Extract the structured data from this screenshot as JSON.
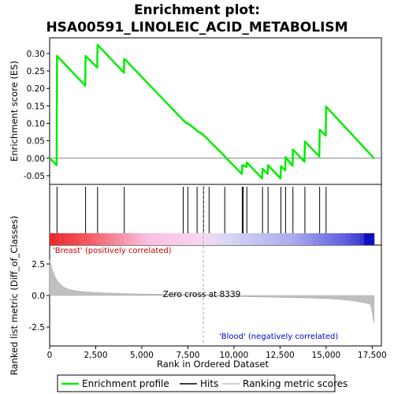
{
  "chart_data": {
    "type": "line",
    "title_line1": "Enrichment plot:",
    "title_line2": "HSA00591_LINOLEIC_ACID_METABOLISM",
    "es_ylabel": "Enrichment score (ES)",
    "metric_ylabel": "Ranked list metric (Diff_of_Classes)",
    "xlabel": "Rank in Ordered Dataset",
    "xlim": [
      0,
      18000
    ],
    "es_ylim": [
      -0.075,
      0.345
    ],
    "metric_ylim": [
      -4.0,
      4.0
    ],
    "x_ticks": [
      0,
      2500,
      5000,
      7500,
      10000,
      12500,
      15000,
      17500
    ],
    "x_tick_labels": [
      "0",
      "2,500",
      "5,000",
      "7,500",
      "10,000",
      "12,500",
      "15,000",
      "17,500"
    ],
    "es_ticks": [
      -0.05,
      0.0,
      0.05,
      0.1,
      0.15,
      0.2,
      0.25,
      0.3
    ],
    "es_tick_labels": [
      "-0.05",
      "0.00",
      "0.05",
      "0.10",
      "0.15",
      "0.20",
      "0.25",
      "0.30"
    ],
    "metric_ticks": [
      -2.5,
      0.0,
      2.5
    ],
    "metric_tick_labels": [
      "-2.5",
      "0.0",
      "2.5"
    ],
    "n_genes": 17600,
    "hits": [
      400,
      1950,
      2600,
      4050,
      7250,
      7500,
      8000,
      8350,
      8650,
      9500,
      10450,
      10500,
      10700,
      11550,
      11850,
      12550,
      12800,
      13200,
      13850,
      14650,
      15000
    ],
    "es_curve": [
      [
        0,
        0.0
      ],
      [
        380,
        -0.02
      ],
      [
        400,
        0.293
      ],
      [
        1930,
        0.208
      ],
      [
        1950,
        0.293
      ],
      [
        2580,
        0.26
      ],
      [
        2600,
        0.325
      ],
      [
        4030,
        0.245
      ],
      [
        4050,
        0.285
      ],
      [
        7230,
        0.11
      ],
      [
        7250,
        0.108
      ],
      [
        7480,
        0.099
      ],
      [
        7500,
        0.1
      ],
      [
        7980,
        0.08
      ],
      [
        8000,
        0.078
      ],
      [
        8330,
        0.068
      ],
      [
        8350,
        0.066
      ],
      [
        8630,
        0.052
      ],
      [
        8650,
        0.05
      ],
      [
        9480,
        0.007
      ],
      [
        9500,
        0.005
      ],
      [
        10430,
        -0.045
      ],
      [
        10450,
        -0.02
      ],
      [
        10480,
        -0.022
      ],
      [
        10500,
        -0.02
      ],
      [
        10680,
        -0.025
      ],
      [
        10700,
        -0.012
      ],
      [
        11530,
        -0.058
      ],
      [
        11550,
        -0.03
      ],
      [
        11830,
        -0.045
      ],
      [
        11850,
        -0.02
      ],
      [
        12530,
        -0.058
      ],
      [
        12550,
        -0.023
      ],
      [
        12780,
        -0.035
      ],
      [
        12800,
        0.003
      ],
      [
        13180,
        -0.022
      ],
      [
        13200,
        0.025
      ],
      [
        13830,
        -0.01
      ],
      [
        13850,
        0.048
      ],
      [
        14630,
        0.005
      ],
      [
        14650,
        0.082
      ],
      [
        14980,
        0.065
      ],
      [
        15000,
        0.148
      ],
      [
        17600,
        0.0
      ]
    ],
    "zero_cross_label": "Zero cross at 8339",
    "zero_cross_rank": 8339,
    "pos_label": "'Breast' (positively correlated)",
    "neg_label": "'Blood' (negatively correlated)",
    "colors": {
      "es_line": "#00ee00",
      "hits": "#000000",
      "metric_fill": "#c0c0c0",
      "pos_text": "#cc0000",
      "neg_text": "#0000cc",
      "band_red": "#ee2020",
      "band_blue": "#2020cc"
    },
    "legend": [
      "Enrichment profile",
      "Hits",
      "Ranking metric scores"
    ]
  }
}
